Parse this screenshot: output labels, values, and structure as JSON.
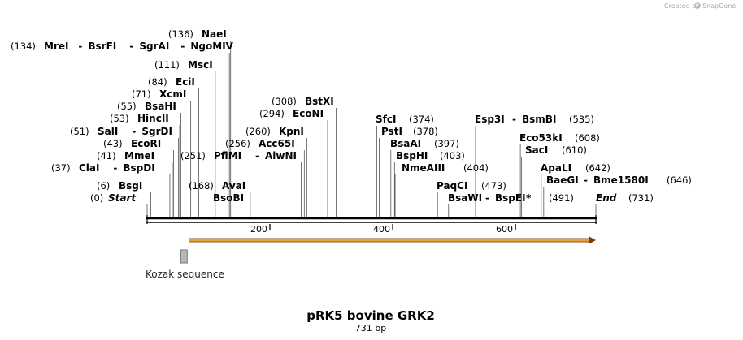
{
  "brand": {
    "created_by": "Created by",
    "app_name": "SnapGene"
  },
  "map": {
    "title": "pRK5 bovine GRK2",
    "length_label": "731 bp",
    "length_bp": 731,
    "ticks": [
      200,
      400,
      600
    ]
  },
  "features": [
    {
      "name": "Kozak sequence",
      "start": 60,
      "end": 70,
      "type": "box",
      "color": "#999999"
    },
    {
      "name": "",
      "start": 68,
      "end": 731,
      "type": "arrow",
      "color": "#f0a030"
    }
  ],
  "sites": [
    {
      "pos": "(0)",
      "names": [
        [
          "Start",
          "ital"
        ]
      ],
      "bp": 0
    },
    {
      "pos": "(6)",
      "names": [
        [
          "BsgI",
          "b"
        ]
      ],
      "bp": 6
    },
    {
      "pos": "(37)",
      "names": [
        [
          "ClaI",
          "b"
        ],
        [
          "BspDI",
          "b"
        ]
      ],
      "bp": 37
    },
    {
      "pos": "(41)",
      "names": [
        [
          "MmeI",
          "b"
        ]
      ],
      "bp": 41
    },
    {
      "pos": "(43)",
      "names": [
        [
          "EcoRI",
          "b"
        ]
      ],
      "bp": 43
    },
    {
      "pos": "(51)",
      "names": [
        [
          "SalI",
          "b"
        ],
        [
          "SgrDI",
          "b"
        ]
      ],
      "bp": 51
    },
    {
      "pos": "(53)",
      "names": [
        [
          "HincII",
          "b"
        ]
      ],
      "bp": 53
    },
    {
      "pos": "(55)",
      "names": [
        [
          "BsaHI",
          "b"
        ]
      ],
      "bp": 55
    },
    {
      "pos": "(71)",
      "names": [
        [
          "XcmI",
          "b"
        ]
      ],
      "bp": 71
    },
    {
      "pos": "(84)",
      "names": [
        [
          "EciI",
          "b"
        ]
      ],
      "bp": 84
    },
    {
      "pos": "(111)",
      "names": [
        [
          "MscI",
          "b"
        ]
      ],
      "bp": 111
    },
    {
      "pos": "(134)",
      "names": [
        [
          "MreI",
          "b"
        ],
        [
          "BsrFI",
          "b"
        ],
        [
          "SgrAI",
          "b"
        ],
        [
          "NgoMIV",
          "b"
        ]
      ],
      "bp": 134
    },
    {
      "pos": "(136)",
      "names": [
        [
          "NaeI",
          "b"
        ]
      ],
      "bp": 136
    },
    {
      "pos": "(168)",
      "names": [
        [
          "AvaI",
          "b"
        ],
        [
          "BsoBI",
          "b"
        ]
      ],
      "bp": 168
    },
    {
      "pos": "(251)",
      "names": [
        [
          "PflMI",
          "b"
        ],
        [
          "AlwNI",
          "b"
        ]
      ],
      "bp": 251
    },
    {
      "pos": "(256)",
      "names": [
        [
          "Acc65I",
          "b"
        ]
      ],
      "bp": 256
    },
    {
      "pos": "(260)",
      "names": [
        [
          "KpnI",
          "b"
        ]
      ],
      "bp": 260
    },
    {
      "pos": "(294)",
      "names": [
        [
          "EcoNI",
          "b"
        ]
      ],
      "bp": 294
    },
    {
      "pos": "(308)",
      "names": [
        [
          "BstXI",
          "b"
        ]
      ],
      "bp": 308
    },
    {
      "pos": "(374)",
      "names": [
        [
          "SfcI",
          "b"
        ]
      ],
      "bp": 374
    },
    {
      "pos": "(378)",
      "names": [
        [
          "PstI",
          "b"
        ]
      ],
      "bp": 378
    },
    {
      "pos": "(397)",
      "names": [
        [
          "BsaAI",
          "b"
        ]
      ],
      "bp": 397
    },
    {
      "pos": "(403)",
      "names": [
        [
          "BspHI",
          "b"
        ]
      ],
      "bp": 403
    },
    {
      "pos": "(404)",
      "names": [
        [
          "NmeAIII",
          "b"
        ]
      ],
      "bp": 404
    },
    {
      "pos": "(473)",
      "names": [
        [
          "PaqCI",
          "b"
        ]
      ],
      "bp": 473
    },
    {
      "pos": "(491)",
      "names": [
        [
          "BsaWI",
          "b"
        ],
        [
          "BspEI",
          "b"
        ],
        [
          "*",
          "b"
        ]
      ],
      "bp": 491
    },
    {
      "pos": "(535)",
      "names": [
        [
          "Esp3I",
          "b"
        ],
        [
          "BsmBI",
          "b"
        ]
      ],
      "bp": 535
    },
    {
      "pos": "(608)",
      "names": [
        [
          "Eco53kI",
          "b"
        ]
      ],
      "bp": 608
    },
    {
      "pos": "(610)",
      "names": [
        [
          "SacI",
          "b"
        ]
      ],
      "bp": 610
    },
    {
      "pos": "(642)",
      "names": [
        [
          "ApaLI",
          "b"
        ]
      ],
      "bp": 642
    },
    {
      "pos": "(646)",
      "names": [
        [
          "BaeGI",
          "b"
        ],
        [
          "Bme1580I",
          "b"
        ]
      ],
      "bp": 646
    },
    {
      "pos": "(731)",
      "names": [
        [
          "End",
          "ital"
        ]
      ],
      "bp": 731
    }
  ]
}
